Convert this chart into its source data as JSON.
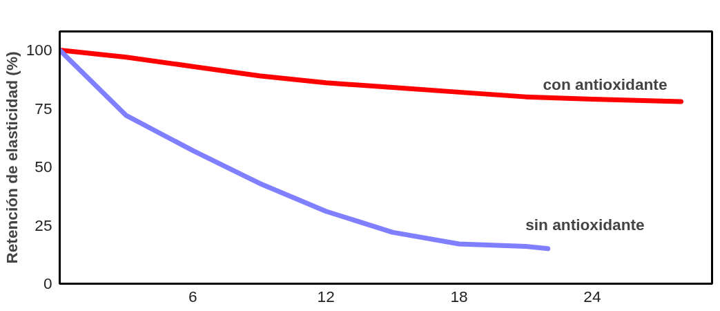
{
  "chart_data": {
    "type": "line",
    "ylabel": "Retención de elasticidad (%)",
    "x": [
      0,
      3,
      6,
      9,
      12,
      15,
      18,
      21,
      24,
      28
    ],
    "series": [
      {
        "name": "con antioxidante",
        "color": "#ff0000",
        "values": [
          100,
          97,
          93,
          89,
          86,
          84,
          82,
          80,
          79,
          78
        ]
      },
      {
        "name": "sin antioxidante",
        "color": "#7f7fff",
        "x": [
          0,
          3,
          6,
          9,
          12,
          15,
          18,
          21,
          22
        ],
        "values": [
          100,
          72,
          57,
          43,
          31,
          22,
          17,
          16,
          15
        ]
      }
    ],
    "xlim": [
      0,
      29.4
    ],
    "ylim": [
      0,
      108
    ],
    "xticks": [
      6,
      12,
      18,
      24
    ],
    "yticks": [
      0,
      25,
      50,
      75,
      100
    ],
    "grid": false,
    "marker": "none",
    "line_style": "solid"
  }
}
